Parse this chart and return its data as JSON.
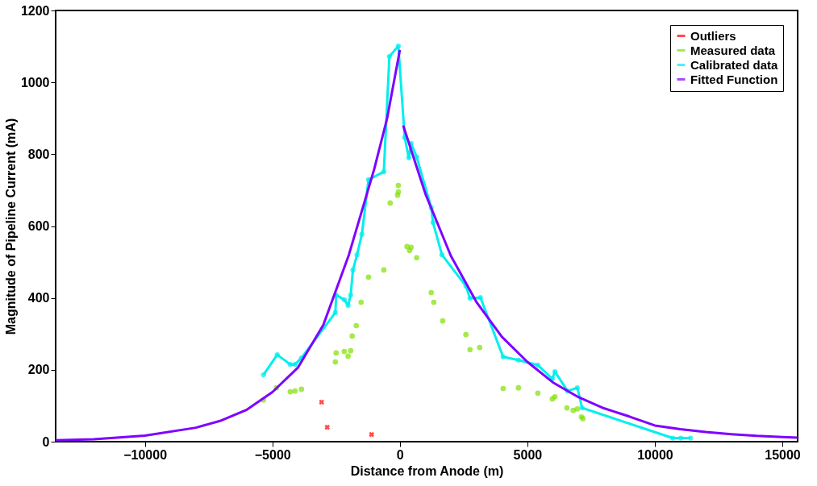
{
  "chart_data": {
    "type": "scatter",
    "xlabel": "Distance from Anode (m)",
    "ylabel": "Magnitude of Pipeline Current (mA)",
    "xlim": [
      -13500,
      15600
    ],
    "xticks": [
      -10000,
      -5000,
      0,
      5000,
      10000,
      15000
    ],
    "ylim": [
      0,
      1200
    ],
    "yticks": [
      0,
      200,
      400,
      600,
      800,
      1000,
      1200
    ],
    "grid": false,
    "legend": "top right",
    "series": [
      {
        "name": "Outliers",
        "marker": "cross",
        "color": "#ff0000",
        "x": [
          -3070,
          -2850,
          -1110
        ],
        "values": [
          110,
          40,
          20
        ]
      },
      {
        "name": "Measured data",
        "marker": "circle",
        "color": "#7fe000",
        "x": [
          -5350,
          -4840,
          -4300,
          -4110,
          -3860,
          -2530,
          -2500,
          -2180,
          -2030,
          -1930,
          -1870,
          -1710,
          -1520,
          -1230,
          -630,
          -380,
          -90,
          -60,
          -60,
          280,
          440,
          380,
          660,
          1230,
          1330,
          1680,
          2590,
          2750,
          3130,
          4050,
          4650,
          5410,
          5980,
          6080,
          6550,
          6800,
          6960,
          7120,
          7180
        ],
        "values": [
          116,
          150,
          139,
          141,
          146,
          222,
          247,
          251,
          238,
          253,
          294,
          323,
          388,
          458,
          478,
          664,
          686,
          713,
          695,
          543,
          541,
          532,
          512,
          415,
          388,
          336,
          298,
          256,
          262,
          148,
          150,
          135,
          119,
          125,
          94,
          87,
          91,
          69,
          64
        ]
      },
      {
        "name": "Calibrated data",
        "type": "line",
        "marker": "circle",
        "color": "#00eeee",
        "x": [
          -5350,
          -4810,
          -4300,
          -4110,
          -3860,
          -2530,
          -2500,
          -2180,
          -2030,
          -1930,
          -1840,
          -1680,
          -1490,
          -1230,
          -630,
          -410,
          -60,
          190,
          350,
          440,
          660,
          1230,
          1300,
          1650,
          2590,
          2750,
          3160,
          4050,
          4650,
          5410,
          5980,
          6080,
          6580,
          6960,
          7150,
          10700,
          11020,
          11400
        ],
        "values": [
          186,
          242,
          215,
          215,
          233,
          359,
          408,
          395,
          379,
          408,
          478,
          520,
          577,
          729,
          751,
          1072,
          1101,
          846,
          790,
          830,
          792,
          651,
          610,
          520,
          433,
          399,
          401,
          236,
          227,
          213,
          175,
          195,
          141,
          150,
          94,
          10,
          10,
          10
        ]
      },
      {
        "name": "Fitted Function",
        "type": "line",
        "marker": "none",
        "color": "#7f00ff",
        "x": [
          -13500,
          -12000,
          -10000,
          -8000,
          -7000,
          -6000,
          -5000,
          -4000,
          -3000,
          -2000,
          -1000,
          -500,
          0,
          60,
          130,
          1000,
          2000,
          3000,
          4000,
          5000,
          6000,
          7000,
          8000,
          9000,
          10000,
          11000,
          12000,
          13000,
          14000,
          15000,
          15600
        ],
        "values": [
          4,
          7,
          17,
          39,
          59,
          89,
          138,
          206,
          325,
          520,
          760,
          900,
          1090,
          null,
          880,
          690,
          517,
          389,
          292,
          222,
          165,
          124,
          93,
          70,
          45,
          35,
          27,
          21,
          16,
          13,
          11
        ]
      }
    ]
  }
}
